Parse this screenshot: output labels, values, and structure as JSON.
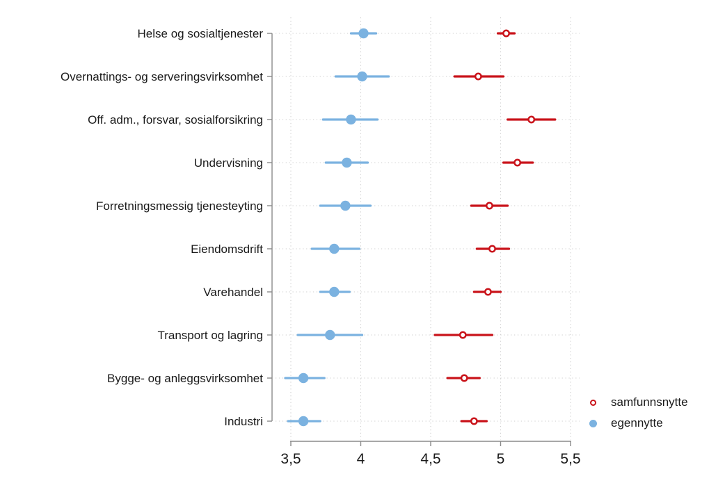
{
  "chart_data": {
    "type": "scatter",
    "subtype": "dot-with-confidence-intervals",
    "orientation": "horizontal",
    "title": "",
    "xlabel": "",
    "ylabel": "",
    "grid": "dotted",
    "xlim": [
      3.5,
      5.5
    ],
    "x_ticks": [
      3.5,
      4,
      4.5,
      5,
      5.5
    ],
    "x_tick_labels": [
      "3,5",
      "4",
      "4,5",
      "5",
      "5,5"
    ],
    "categories": [
      "Helse og sosialtjenester",
      "Overnattings- og serveringsvirksomhet",
      "Off. adm., forsvar, sosialforsikring",
      "Undervisning",
      "Forretningsmessig tjenesteyting",
      "Eiendomsdrift",
      "Varehandel",
      "Transport og lagring",
      "Bygge- og anleggsvirksomhet",
      "Industri"
    ],
    "series": [
      {
        "name": "samfunnsnytte",
        "marker": "hollow-circle",
        "color": "#c9131a",
        "values": [
          5.04,
          4.84,
          5.22,
          5.12,
          4.92,
          4.94,
          4.91,
          4.73,
          4.74,
          4.81
        ],
        "ci_low": [
          4.98,
          4.67,
          5.05,
          5.02,
          4.79,
          4.83,
          4.81,
          4.53,
          4.62,
          4.72
        ],
        "ci_high": [
          5.1,
          5.02,
          5.39,
          5.23,
          5.05,
          5.06,
          5.0,
          4.94,
          4.85,
          4.9
        ]
      },
      {
        "name": "egennytte",
        "marker": "filled-circle",
        "color": "#7bb2e0",
        "values": [
          4.02,
          4.01,
          3.93,
          3.9,
          3.89,
          3.81,
          3.81,
          3.78,
          3.59,
          3.59
        ],
        "ci_low": [
          3.93,
          3.82,
          3.73,
          3.75,
          3.71,
          3.65,
          3.71,
          3.55,
          3.46,
          3.48
        ],
        "ci_high": [
          4.11,
          4.2,
          4.12,
          4.05,
          4.07,
          3.99,
          3.92,
          4.01,
          3.74,
          3.71
        ]
      }
    ],
    "legend_position": "right-bottom"
  },
  "legend": {
    "items": [
      {
        "label": "samfunnsnytte",
        "marker": "red-hollow-circle"
      },
      {
        "label": "egennytte",
        "marker": "blue-filled-circle"
      }
    ]
  },
  "colors": {
    "samfunnsnytte": "#c9131a",
    "egennytte": "#7bb2e0",
    "axis": "#8a8a8a",
    "gridline": "#cfcfcf",
    "text": "#1a1a1a",
    "background": "#ffffff"
  }
}
